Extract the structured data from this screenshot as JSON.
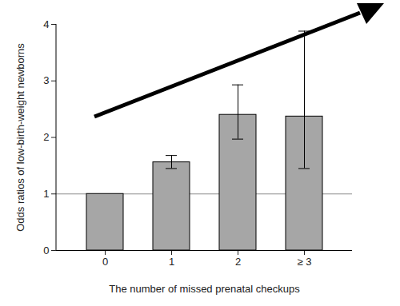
{
  "chart_data": {
    "type": "bar",
    "categories": [
      "0",
      "1",
      "2",
      "≥ 3"
    ],
    "values": [
      1,
      1.56,
      2.4,
      2.37
    ],
    "error_low": [
      null,
      1.45,
      1.97,
      1.45
    ],
    "error_high": [
      null,
      1.68,
      2.93,
      3.88
    ],
    "reference_line": 1,
    "color": "#a6a6a6",
    "x_label": "The number of missed prenatal checkups",
    "y_label": "Odds ratios of low-birth-weight newborns",
    "ylim": [
      0,
      4
    ],
    "yticks": [
      0,
      1,
      2,
      3,
      4
    ],
    "grid": false
  }
}
